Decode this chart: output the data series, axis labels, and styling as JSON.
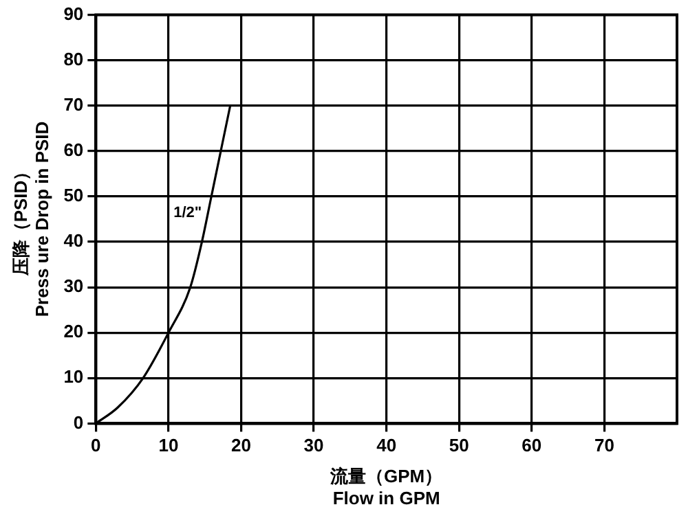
{
  "chart_data": {
    "type": "line",
    "xlabel": "流量（GPM）\nFlow in GPM",
    "ylabel": "压降（PSID）\nPress ure Drop in PSID",
    "series": [
      {
        "name": "1/2\"",
        "color": "#000000",
        "x": [
          0,
          3,
          6.5,
          10,
          13,
          14.6,
          15.9,
          17.2,
          18.5
        ],
        "values": [
          0,
          3.5,
          10,
          20,
          30,
          40,
          50,
          60,
          70
        ]
      }
    ],
    "xlim": [
      0,
      80
    ],
    "xticks": [
      0,
      10,
      20,
      30,
      40,
      50,
      60,
      70
    ],
    "ylim": [
      0,
      90
    ],
    "yticks": [
      0,
      10,
      20,
      30,
      40,
      50,
      60,
      70,
      80,
      90
    ],
    "grid": true,
    "legend": false,
    "marker": "none",
    "line_style": "solid"
  }
}
